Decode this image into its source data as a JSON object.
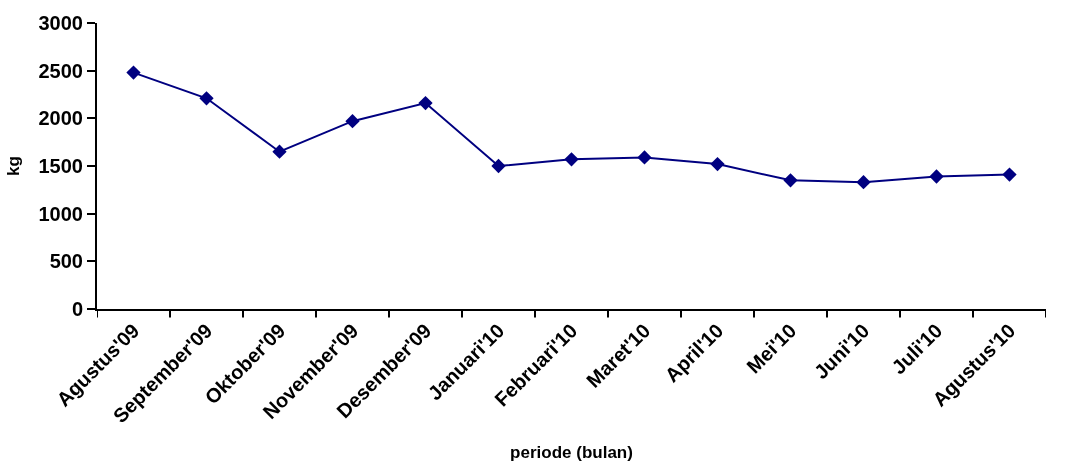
{
  "chart_data": {
    "type": "line",
    "xlabel": "periode (bulan)",
    "ylabel": "kg",
    "categories": [
      "Agustus'09",
      "September'09",
      "Oktober'09",
      "November'09",
      "Desember'09",
      "Januari'10",
      "Februari'10",
      "Maret'10",
      "April'10",
      "Mei'10",
      "Juni'10",
      "Juli'10",
      "Agustus'10"
    ],
    "series": [
      {
        "color": "#000080",
        "values": [
          2480,
          2210,
          1650,
          1970,
          2160,
          1500,
          1570,
          1590,
          1520,
          1350,
          1330,
          1390,
          1410
        ]
      }
    ],
    "ylim": [
      0,
      3000
    ],
    "yticks": [
      0,
      500,
      1000,
      1500,
      2000,
      2500,
      3000
    ],
    "marker": "diamond",
    "line_style": "solid"
  }
}
